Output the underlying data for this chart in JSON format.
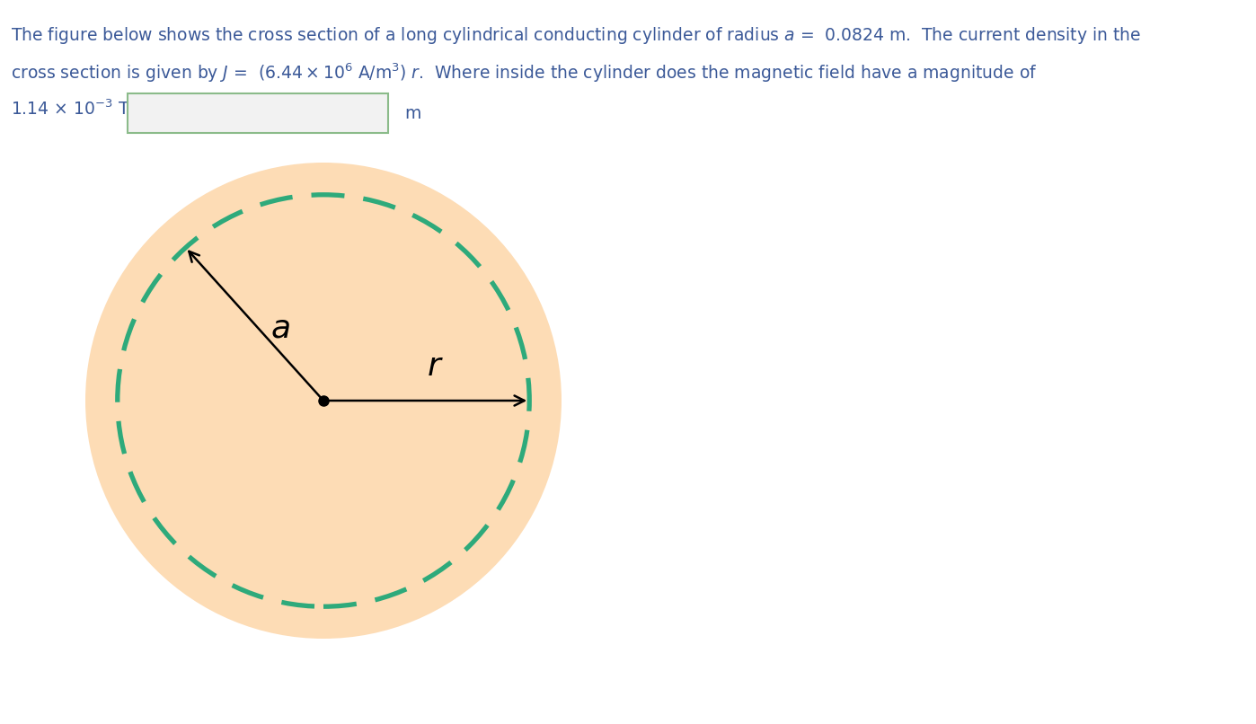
{
  "circle_fill_color": "#FDDCB5",
  "dashed_circle_color": "#2EAA7B",
  "text_color": "#3B5998",
  "fig_width": 13.98,
  "fig_height": 8.06,
  "background_color": "#FFFFFF",
  "box_edge_color": "#8BBB8A",
  "box_face_color": "#F2F2F2"
}
